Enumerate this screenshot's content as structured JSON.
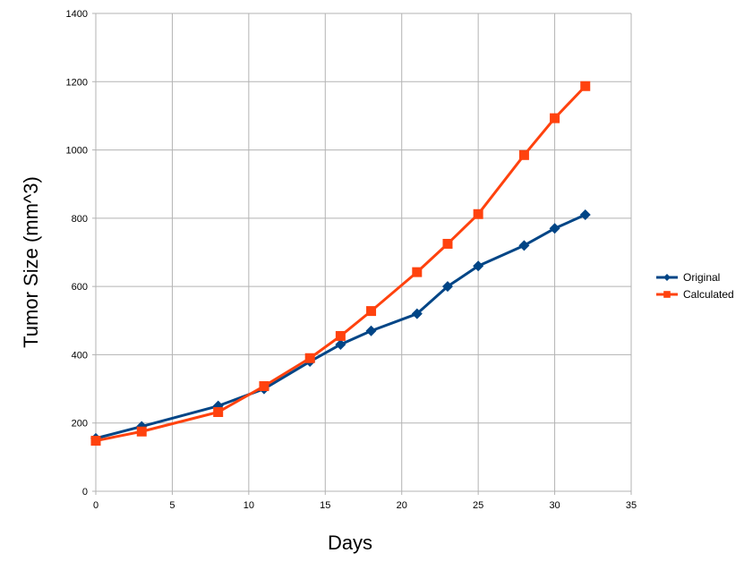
{
  "chart_data": {
    "type": "line",
    "title": "",
    "xlabel": "Days",
    "ylabel": "Tumor Size (mm^3)",
    "xlim": [
      0,
      35
    ],
    "ylim": [
      0,
      1400
    ],
    "xticks": [
      0,
      5,
      10,
      15,
      20,
      25,
      30,
      35
    ],
    "yticks": [
      0,
      200,
      400,
      600,
      800,
      1000,
      1200,
      1400
    ],
    "grid": true,
    "legend_position": "right",
    "series": [
      {
        "name": "Original",
        "color": "#004586",
        "marker": "diamond",
        "x": [
          0,
          3,
          8,
          11,
          14,
          16,
          18,
          21,
          23,
          25,
          28,
          30,
          32
        ],
        "y": [
          155,
          190,
          250,
          300,
          380,
          430,
          470,
          520,
          600,
          660,
          720,
          770,
          810
        ]
      },
      {
        "name": "Calculated",
        "color": "#ff420e",
        "marker": "square",
        "x": [
          0,
          3,
          8,
          11,
          14,
          16,
          18,
          21,
          23,
          25,
          28,
          30,
          32
        ],
        "y": [
          148,
          175,
          232,
          308,
          390,
          455,
          528,
          642,
          725,
          812,
          985,
          1093,
          1187
        ]
      }
    ]
  }
}
